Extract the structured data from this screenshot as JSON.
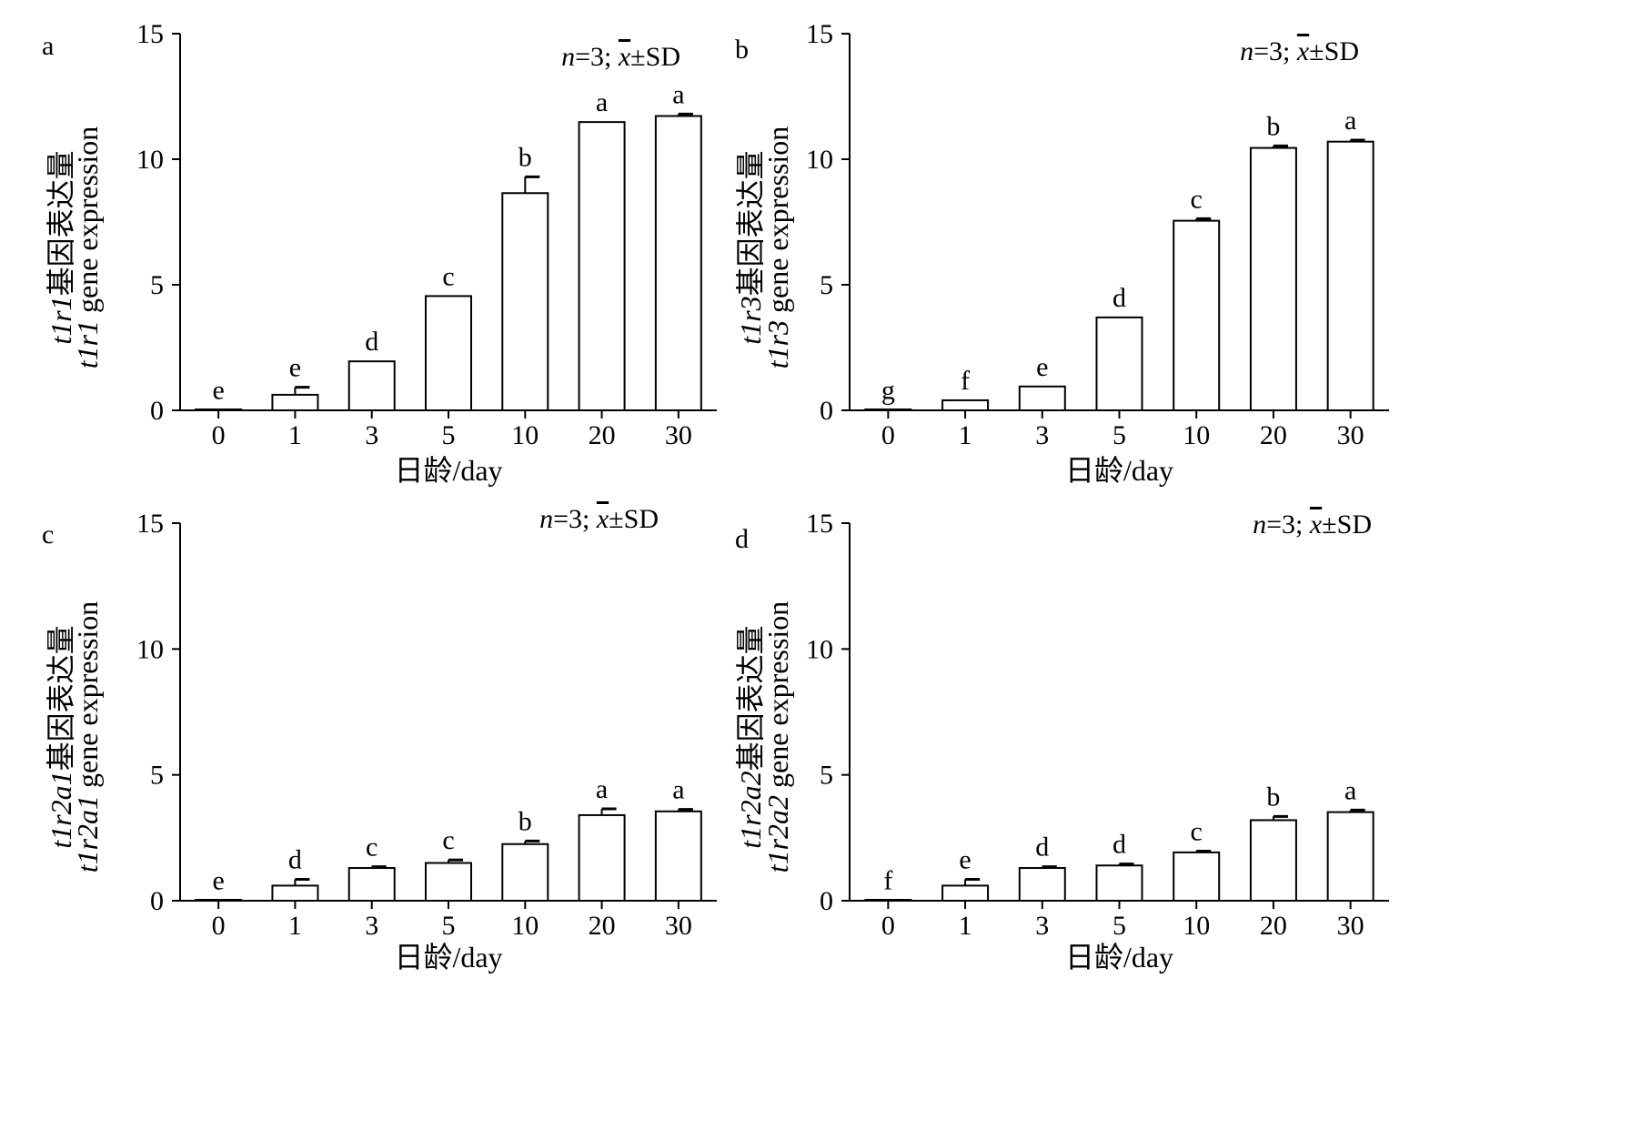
{
  "chart_data": [
    {
      "panel": "a",
      "type": "bar",
      "stat_note": {
        "n": "n",
        "eq": "=3; ",
        "xbar": "x",
        "rest": "±SD"
      },
      "ylabel_line1": {
        "gene": "t1r1",
        "suffix": "基因表达量"
      },
      "ylabel_line2": {
        "gene": "t1r1",
        "suffix": " gene expression"
      },
      "xlabel": "日龄/day",
      "categories": [
        "0",
        "1",
        "3",
        "5",
        "10",
        "20",
        "30"
      ],
      "values": [
        0.02,
        0.62,
        1.95,
        4.55,
        8.65,
        11.48,
        11.72
      ],
      "errors": [
        0,
        0.3,
        0,
        0,
        0.65,
        0,
        0.08
      ],
      "letters": [
        "e",
        "e",
        "d",
        "c",
        "b",
        "a",
        "a"
      ],
      "ylim": [
        0,
        15
      ],
      "yticks": [
        "0",
        "5",
        "10",
        "15"
      ]
    },
    {
      "panel": "b",
      "type": "bar",
      "stat_note": {
        "n": "n",
        "eq": "=3; ",
        "xbar": "x",
        "rest": "±SD"
      },
      "ylabel_line1": {
        "gene": "t1r3",
        "suffix": "基因表达量"
      },
      "ylabel_line2": {
        "gene": "t1r3",
        "suffix": " gene expression"
      },
      "xlabel": "日龄/day",
      "categories": [
        "0",
        "1",
        "3",
        "5",
        "10",
        "20",
        "30"
      ],
      "values": [
        0.02,
        0.4,
        0.95,
        3.7,
        7.55,
        10.45,
        10.7
      ],
      "errors": [
        0,
        0,
        0,
        0,
        0.08,
        0.08,
        0.06
      ],
      "letters": [
        "g",
        "f",
        "e",
        "d",
        "c",
        "b",
        "a"
      ],
      "ylim": [
        0,
        15
      ],
      "yticks": [
        "0",
        "5",
        "10",
        "15"
      ]
    },
    {
      "panel": "c",
      "type": "bar",
      "stat_note": {
        "n": "n",
        "eq": "=3; ",
        "xbar": "x",
        "rest": "±SD"
      },
      "ylabel_line1": {
        "gene": "t1r2a1",
        "suffix": "基因表达量"
      },
      "ylabel_line2": {
        "gene": "t1r2a1",
        "suffix": " gene expression"
      },
      "xlabel": "日龄/day",
      "categories": [
        "0",
        "1",
        "3",
        "5",
        "10",
        "20",
        "30"
      ],
      "values": [
        0.02,
        0.6,
        1.3,
        1.5,
        2.25,
        3.4,
        3.55
      ],
      "errors": [
        0,
        0.25,
        0.05,
        0.12,
        0.12,
        0.25,
        0.08
      ],
      "letters": [
        "e",
        "d",
        "c",
        "c",
        "b",
        "a",
        "a"
      ],
      "ylim": [
        0,
        15
      ],
      "yticks": [
        "0",
        "5",
        "10",
        "15"
      ]
    },
    {
      "panel": "d",
      "type": "bar",
      "stat_note": {
        "n": "n",
        "eq": "=3; ",
        "xbar": "x",
        "rest": "±SD"
      },
      "ylabel_line1": {
        "gene": "t1r2a2",
        "suffix": "基因表达量"
      },
      "ylabel_line2": {
        "gene": "t1r2a2",
        "suffix": " gene expression"
      },
      "xlabel": "日龄/day",
      "categories": [
        "0",
        "1",
        "3",
        "5",
        "10",
        "20",
        "30"
      ],
      "values": [
        0.02,
        0.6,
        1.3,
        1.4,
        1.92,
        3.2,
        3.52
      ],
      "errors": [
        0,
        0.25,
        0.05,
        0.06,
        0.05,
        0.15,
        0.08
      ],
      "letters": [
        "f",
        "e",
        "d",
        "d",
        "c",
        "b",
        "a"
      ],
      "ylim": [
        0,
        15
      ],
      "yticks": [
        "0",
        "5",
        "10",
        "15"
      ]
    }
  ]
}
